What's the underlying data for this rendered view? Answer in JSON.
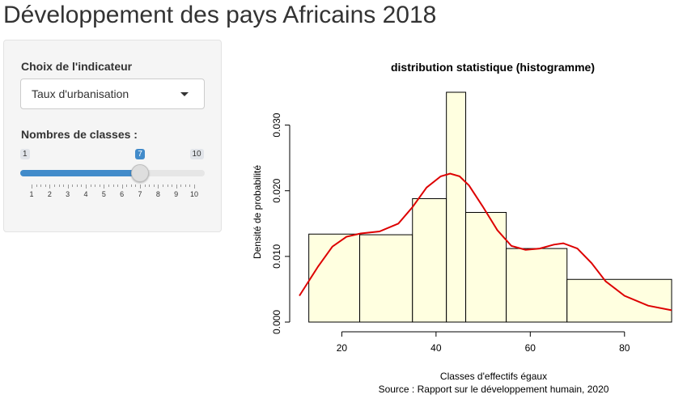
{
  "app": {
    "title": "Développement des pays Africains 2018"
  },
  "sidebar": {
    "indicator_label": "Choix de l'indicateur",
    "indicator_selected": "Taux d'urbanisation",
    "classes_label": "Nombres de classes :",
    "slider": {
      "min": 1,
      "max": 10,
      "value": 7,
      "min_label": "1",
      "max_label": "10",
      "value_label": "7",
      "ticks": [
        "1",
        "2",
        "3",
        "4",
        "5",
        "6",
        "7",
        "8",
        "9",
        "10"
      ]
    }
  },
  "colors": {
    "accent": "#428bca",
    "bar_fill": "#ffffe0",
    "density_line": "#dd0000"
  },
  "chart_data": {
    "type": "bar",
    "title": "distribution statistique (histogramme)",
    "xlabel": "Classes d'effectifs égaux",
    "ylabel": "Densité de probabilité",
    "caption": "Source : Rapport sur le développement humain, 2020",
    "xlim": [
      11,
      90
    ],
    "ylim": [
      0,
      0.035
    ],
    "x_ticks": [
      20,
      40,
      60,
      80
    ],
    "x_tick_labels": [
      "20",
      "40",
      "60",
      "80"
    ],
    "y_ticks": [
      0,
      0.01,
      0.02,
      0.03
    ],
    "y_tick_labels": [
      "0.000",
      "0.010",
      "0.020",
      "0.030"
    ],
    "bins": [
      {
        "from": 13.0,
        "to": 23.8,
        "density": 0.0134
      },
      {
        "from": 23.8,
        "to": 35.0,
        "density": 0.0133
      },
      {
        "from": 35.0,
        "to": 42.2,
        "density": 0.0188
      },
      {
        "from": 42.2,
        "to": 46.3,
        "density": 0.035
      },
      {
        "from": 46.3,
        "to": 54.9,
        "density": 0.0167
      },
      {
        "from": 54.9,
        "to": 67.8,
        "density": 0.0112
      },
      {
        "from": 67.8,
        "to": 90.0,
        "density": 0.0065
      }
    ],
    "density_curve": {
      "x": [
        11,
        15,
        18,
        21,
        24,
        28,
        32,
        35,
        38,
        41,
        43,
        45,
        47,
        50,
        53,
        56,
        59,
        62,
        65,
        67,
        70,
        73,
        76,
        80,
        85,
        90
      ],
      "y": [
        0.004,
        0.0085,
        0.0115,
        0.013,
        0.0135,
        0.0138,
        0.015,
        0.0175,
        0.0205,
        0.0222,
        0.0226,
        0.0222,
        0.0208,
        0.0175,
        0.014,
        0.0116,
        0.011,
        0.0112,
        0.0118,
        0.012,
        0.0112,
        0.009,
        0.0062,
        0.004,
        0.0025,
        0.0018
      ]
    }
  }
}
